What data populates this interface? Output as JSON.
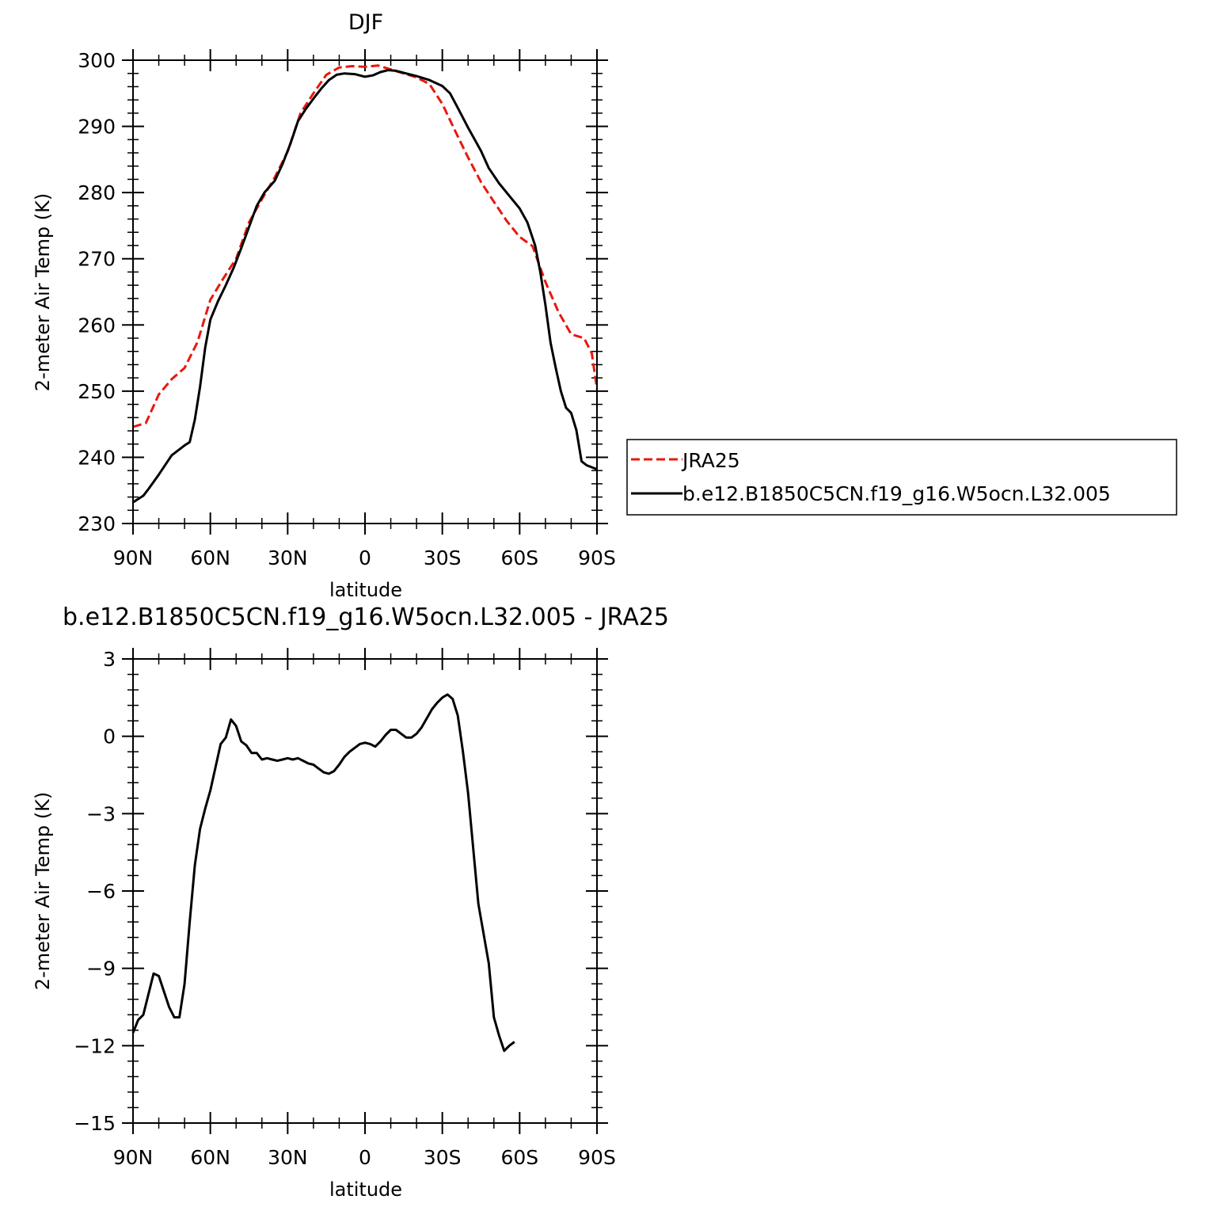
{
  "chart_data": [
    {
      "type": "line",
      "title": "DJF",
      "xlabel": "latitude",
      "ylabel": "2-meter Air Temp (K)",
      "xlim": [
        90,
        -90
      ],
      "ylim": [
        230,
        300
      ],
      "x_ticks": [
        {
          "value": 90,
          "label": "90N"
        },
        {
          "value": 60,
          "label": "60N"
        },
        {
          "value": 30,
          "label": "30N"
        },
        {
          "value": 0,
          "label": "0"
        },
        {
          "value": -30,
          "label": "30S"
        },
        {
          "value": -60,
          "label": "60S"
        },
        {
          "value": -90,
          "label": "90S"
        }
      ],
      "y_ticks": [
        230,
        240,
        250,
        260,
        270,
        280,
        290,
        300
      ],
      "legend": "right",
      "series": [
        {
          "name": "JRA25",
          "color": "#e8180e",
          "dash": "dashed",
          "points": [
            [
              90,
              244.6
            ],
            [
              85,
              245.2
            ],
            [
              80,
              249.5
            ],
            [
              75,
              251.8
            ],
            [
              70,
              253.5
            ],
            [
              65,
              257.4
            ],
            [
              60,
              263.8
            ],
            [
              55,
              267
            ],
            [
              50,
              270
            ],
            [
              45,
              275.5
            ],
            [
              40,
              279
            ],
            [
              35,
              282.3
            ],
            [
              30,
              286.2
            ],
            [
              25,
              292
            ],
            [
              20,
              295
            ],
            [
              15,
              297.8
            ],
            [
              10,
              298.9
            ],
            [
              5,
              299.1
            ],
            [
              0,
              299
            ],
            [
              -5,
              299.2
            ],
            [
              -10,
              298.6
            ],
            [
              -15,
              298
            ],
            [
              -20,
              297.4
            ],
            [
              -25,
              296.4
            ],
            [
              -30,
              293.4
            ],
            [
              -35,
              289.3
            ],
            [
              -40,
              285.3
            ],
            [
              -45,
              281.6
            ],
            [
              -50,
              278.6
            ],
            [
              -55,
              275.7
            ],
            [
              -60,
              273.3
            ],
            [
              -65,
              271.9
            ],
            [
              -70,
              266.5
            ],
            [
              -75,
              262
            ],
            [
              -80,
              258.6
            ],
            [
              -85,
              258
            ],
            [
              -88,
              255.7
            ],
            [
              -90,
              250.3
            ]
          ]
        },
        {
          "name": "b.e12.B1850C5CN.f19_g16.W5ocn.L32.005",
          "color": "#000000",
          "dash": "solid",
          "points": [
            [
              90,
              233.2
            ],
            [
              86,
              234.2
            ],
            [
              84,
              235.2
            ],
            [
              80,
              237.4
            ],
            [
              75,
              240.3
            ],
            [
              72,
              241.2
            ],
            [
              70,
              241.8
            ],
            [
              68,
              242.3
            ],
            [
              66,
              245.7
            ],
            [
              64,
              250.6
            ],
            [
              62,
              256.6
            ],
            [
              60,
              260.8
            ],
            [
              57,
              263.6
            ],
            [
              54,
              266
            ],
            [
              51,
              268.6
            ],
            [
              48,
              271.6
            ],
            [
              45,
              274.8
            ],
            [
              42,
              278
            ],
            [
              39,
              280
            ],
            [
              35,
              281.8
            ],
            [
              32,
              284.3
            ],
            [
              29,
              287.3
            ],
            [
              26,
              290.8
            ],
            [
              23,
              292.6
            ],
            [
              20,
              294.2
            ],
            [
              17,
              295.7
            ],
            [
              14,
              297
            ],
            [
              11,
              297.8
            ],
            [
              8,
              298
            ],
            [
              4,
              297.9
            ],
            [
              0,
              297.5
            ],
            [
              -3,
              297.7
            ],
            [
              -6,
              298.2
            ],
            [
              -9,
              298.5
            ],
            [
              -12,
              298.4
            ],
            [
              -15,
              298.1
            ],
            [
              -20,
              297.6
            ],
            [
              -25,
              297
            ],
            [
              -30,
              296.1
            ],
            [
              -33,
              295
            ],
            [
              -36,
              292.8
            ],
            [
              -40,
              289.8
            ],
            [
              -45,
              286.3
            ],
            [
              -48,
              283.7
            ],
            [
              -52,
              281.4
            ],
            [
              -56,
              279.5
            ],
            [
              -60,
              277.6
            ],
            [
              -63,
              275.5
            ],
            [
              -66,
              272
            ],
            [
              -68,
              268
            ],
            [
              -70,
              263
            ],
            [
              -72,
              257.3
            ],
            [
              -74,
              253.5
            ],
            [
              -76,
              250
            ],
            [
              -78,
              247.5
            ],
            [
              -80,
              246.7
            ],
            [
              -82,
              244.1
            ],
            [
              -84,
              239.4
            ],
            [
              -86,
              238.8
            ],
            [
              -88,
              238.5
            ],
            [
              -90,
              238.2
            ]
          ]
        }
      ]
    },
    {
      "type": "line",
      "title": "b.e12.B1850C5CN.f19_g16.W5ocn.L32.005 - JRA25",
      "xlabel": "latitude",
      "ylabel": "2-meter Air Temp (K)",
      "xlim": [
        90,
        -90
      ],
      "ylim": [
        -15,
        3
      ],
      "x_ticks": [
        {
          "value": 90,
          "label": "90N"
        },
        {
          "value": 60,
          "label": "60N"
        },
        {
          "value": 30,
          "label": "30N"
        },
        {
          "value": 0,
          "label": "0"
        },
        {
          "value": -30,
          "label": "30S"
        },
        {
          "value": -60,
          "label": "60S"
        },
        {
          "value": -90,
          "label": "90S"
        }
      ],
      "y_ticks": [
        -15,
        -12,
        -9,
        -6,
        -3,
        0,
        3
      ],
      "series": [
        {
          "color": "#000000",
          "dash": "solid",
          "points": [
            [
              90,
              -11.5
            ],
            [
              88,
              -11
            ],
            [
              86,
              -10.8
            ],
            [
              84,
              -10
            ],
            [
              82,
              -9.2
            ],
            [
              80,
              -9.3
            ],
            [
              78,
              -9.9
            ],
            [
              76,
              -10.5
            ],
            [
              74,
              -10.9
            ],
            [
              72,
              -10.9
            ],
            [
              70,
              -9.6
            ],
            [
              68,
              -7.2
            ],
            [
              66,
              -5
            ],
            [
              64,
              -3.6
            ],
            [
              62,
              -2.8
            ],
            [
              60,
              -2.1
            ],
            [
              58,
              -1.2
            ],
            [
              56,
              -0.3
            ],
            [
              54,
              -0.05
            ],
            [
              52,
              0.65
            ],
            [
              50,
              0.4
            ],
            [
              48,
              -0.2
            ],
            [
              46,
              -0.35
            ],
            [
              44,
              -0.65
            ],
            [
              42,
              -0.65
            ],
            [
              40,
              -0.9
            ],
            [
              38,
              -0.85
            ],
            [
              36,
              -0.9
            ],
            [
              34,
              -0.95
            ],
            [
              32,
              -0.9
            ],
            [
              30,
              -0.85
            ],
            [
              28,
              -0.9
            ],
            [
              26,
              -0.85
            ],
            [
              24,
              -0.95
            ],
            [
              22,
              -1.05
            ],
            [
              20,
              -1.1
            ],
            [
              18,
              -1.25
            ],
            [
              16,
              -1.4
            ],
            [
              14,
              -1.45
            ],
            [
              12,
              -1.35
            ],
            [
              10,
              -1.1
            ],
            [
              8,
              -0.8
            ],
            [
              6,
              -0.6
            ],
            [
              4,
              -0.45
            ],
            [
              2,
              -0.3
            ],
            [
              0,
              -0.25
            ],
            [
              -2,
              -0.3
            ],
            [
              -4,
              -0.4
            ],
            [
              -6,
              -0.2
            ],
            [
              -8,
              0.05
            ],
            [
              -10,
              0.25
            ],
            [
              -12,
              0.25
            ],
            [
              -14,
              0.1
            ],
            [
              -16,
              -0.05
            ],
            [
              -18,
              -0.05
            ],
            [
              -20,
              0.1
            ],
            [
              -22,
              0.35
            ],
            [
              -24,
              0.7
            ],
            [
              -26,
              1.05
            ],
            [
              -28,
              1.3
            ],
            [
              -30,
              1.5
            ],
            [
              -32,
              1.62
            ],
            [
              -34,
              1.45
            ],
            [
              -36,
              0.8
            ],
            [
              -38,
              -0.6
            ],
            [
              -40,
              -2.2
            ],
            [
              -44,
              -6.5
            ],
            [
              -48,
              -8.8
            ],
            [
              -50,
              -10.9
            ],
            [
              -52,
              -11.6
            ],
            [
              -54,
              -12.2
            ],
            [
              -56,
              -12.0
            ],
            [
              -58,
              -11.85
            ]
          ]
        }
      ]
    }
  ]
}
